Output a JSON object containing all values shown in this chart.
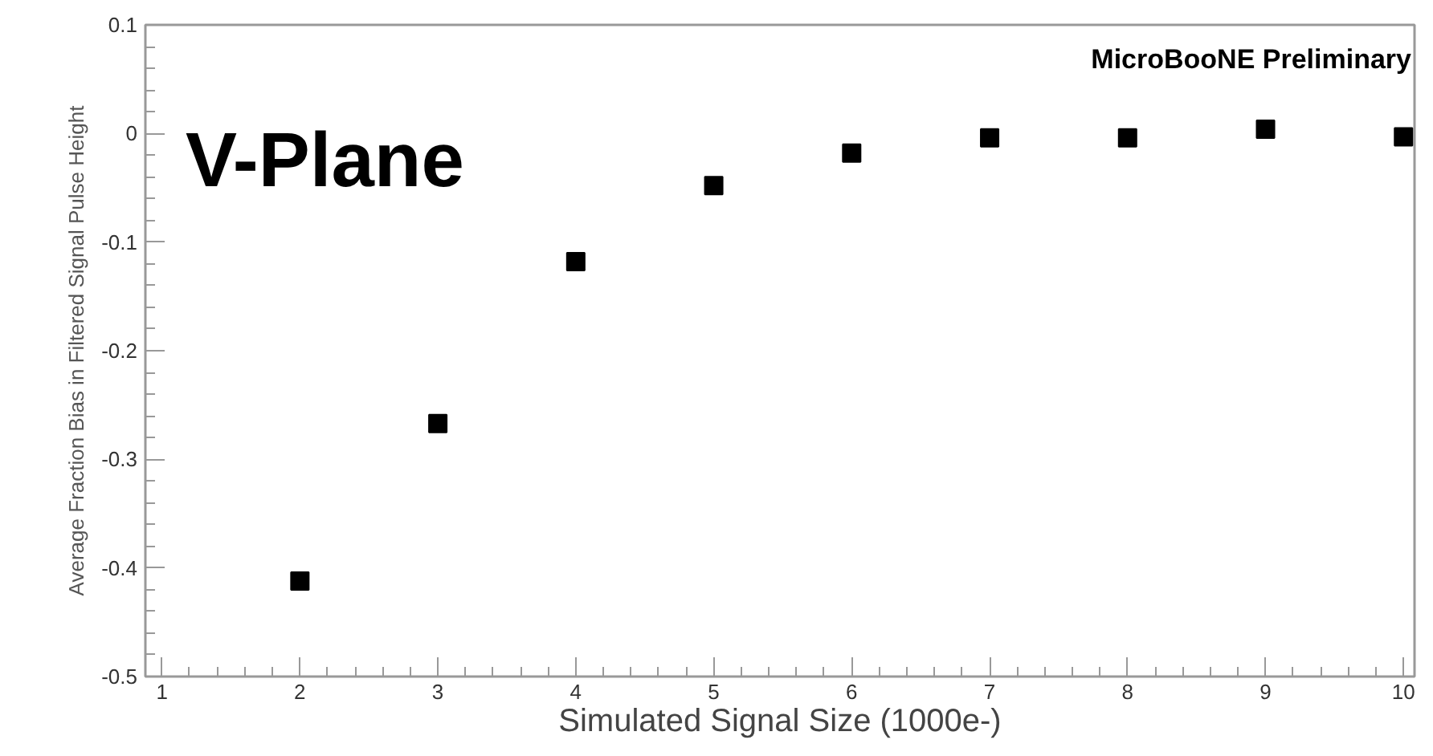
{
  "chart_data": {
    "type": "scatter",
    "xlabel": "Simulated Signal Size (1000e-)",
    "ylabel": "Average Fraction Bias in Filtered Signal Pulse Height",
    "annotations": [
      "V-Plane",
      "MicroBooNE Preliminary"
    ],
    "x": [
      2,
      3,
      4,
      5,
      6,
      7,
      8,
      9,
      10
    ],
    "series": [
      {
        "color": "#000000",
        "values": [
          -0.412,
          -0.267,
          -0.118,
          -0.048,
          -0.018,
          -0.004,
          -0.004,
          0.004,
          -0.003
        ]
      }
    ],
    "xlim": [
      0.88,
      10.08
    ],
    "ylim": [
      -0.5,
      0.1
    ],
    "xticks": [
      1,
      2,
      3,
      4,
      5,
      6,
      7,
      8,
      9,
      10
    ],
    "yticks": [
      -0.5,
      -0.4,
      -0.3,
      -0.2,
      -0.1,
      0,
      0.1
    ],
    "grid": false,
    "marker": "square"
  }
}
